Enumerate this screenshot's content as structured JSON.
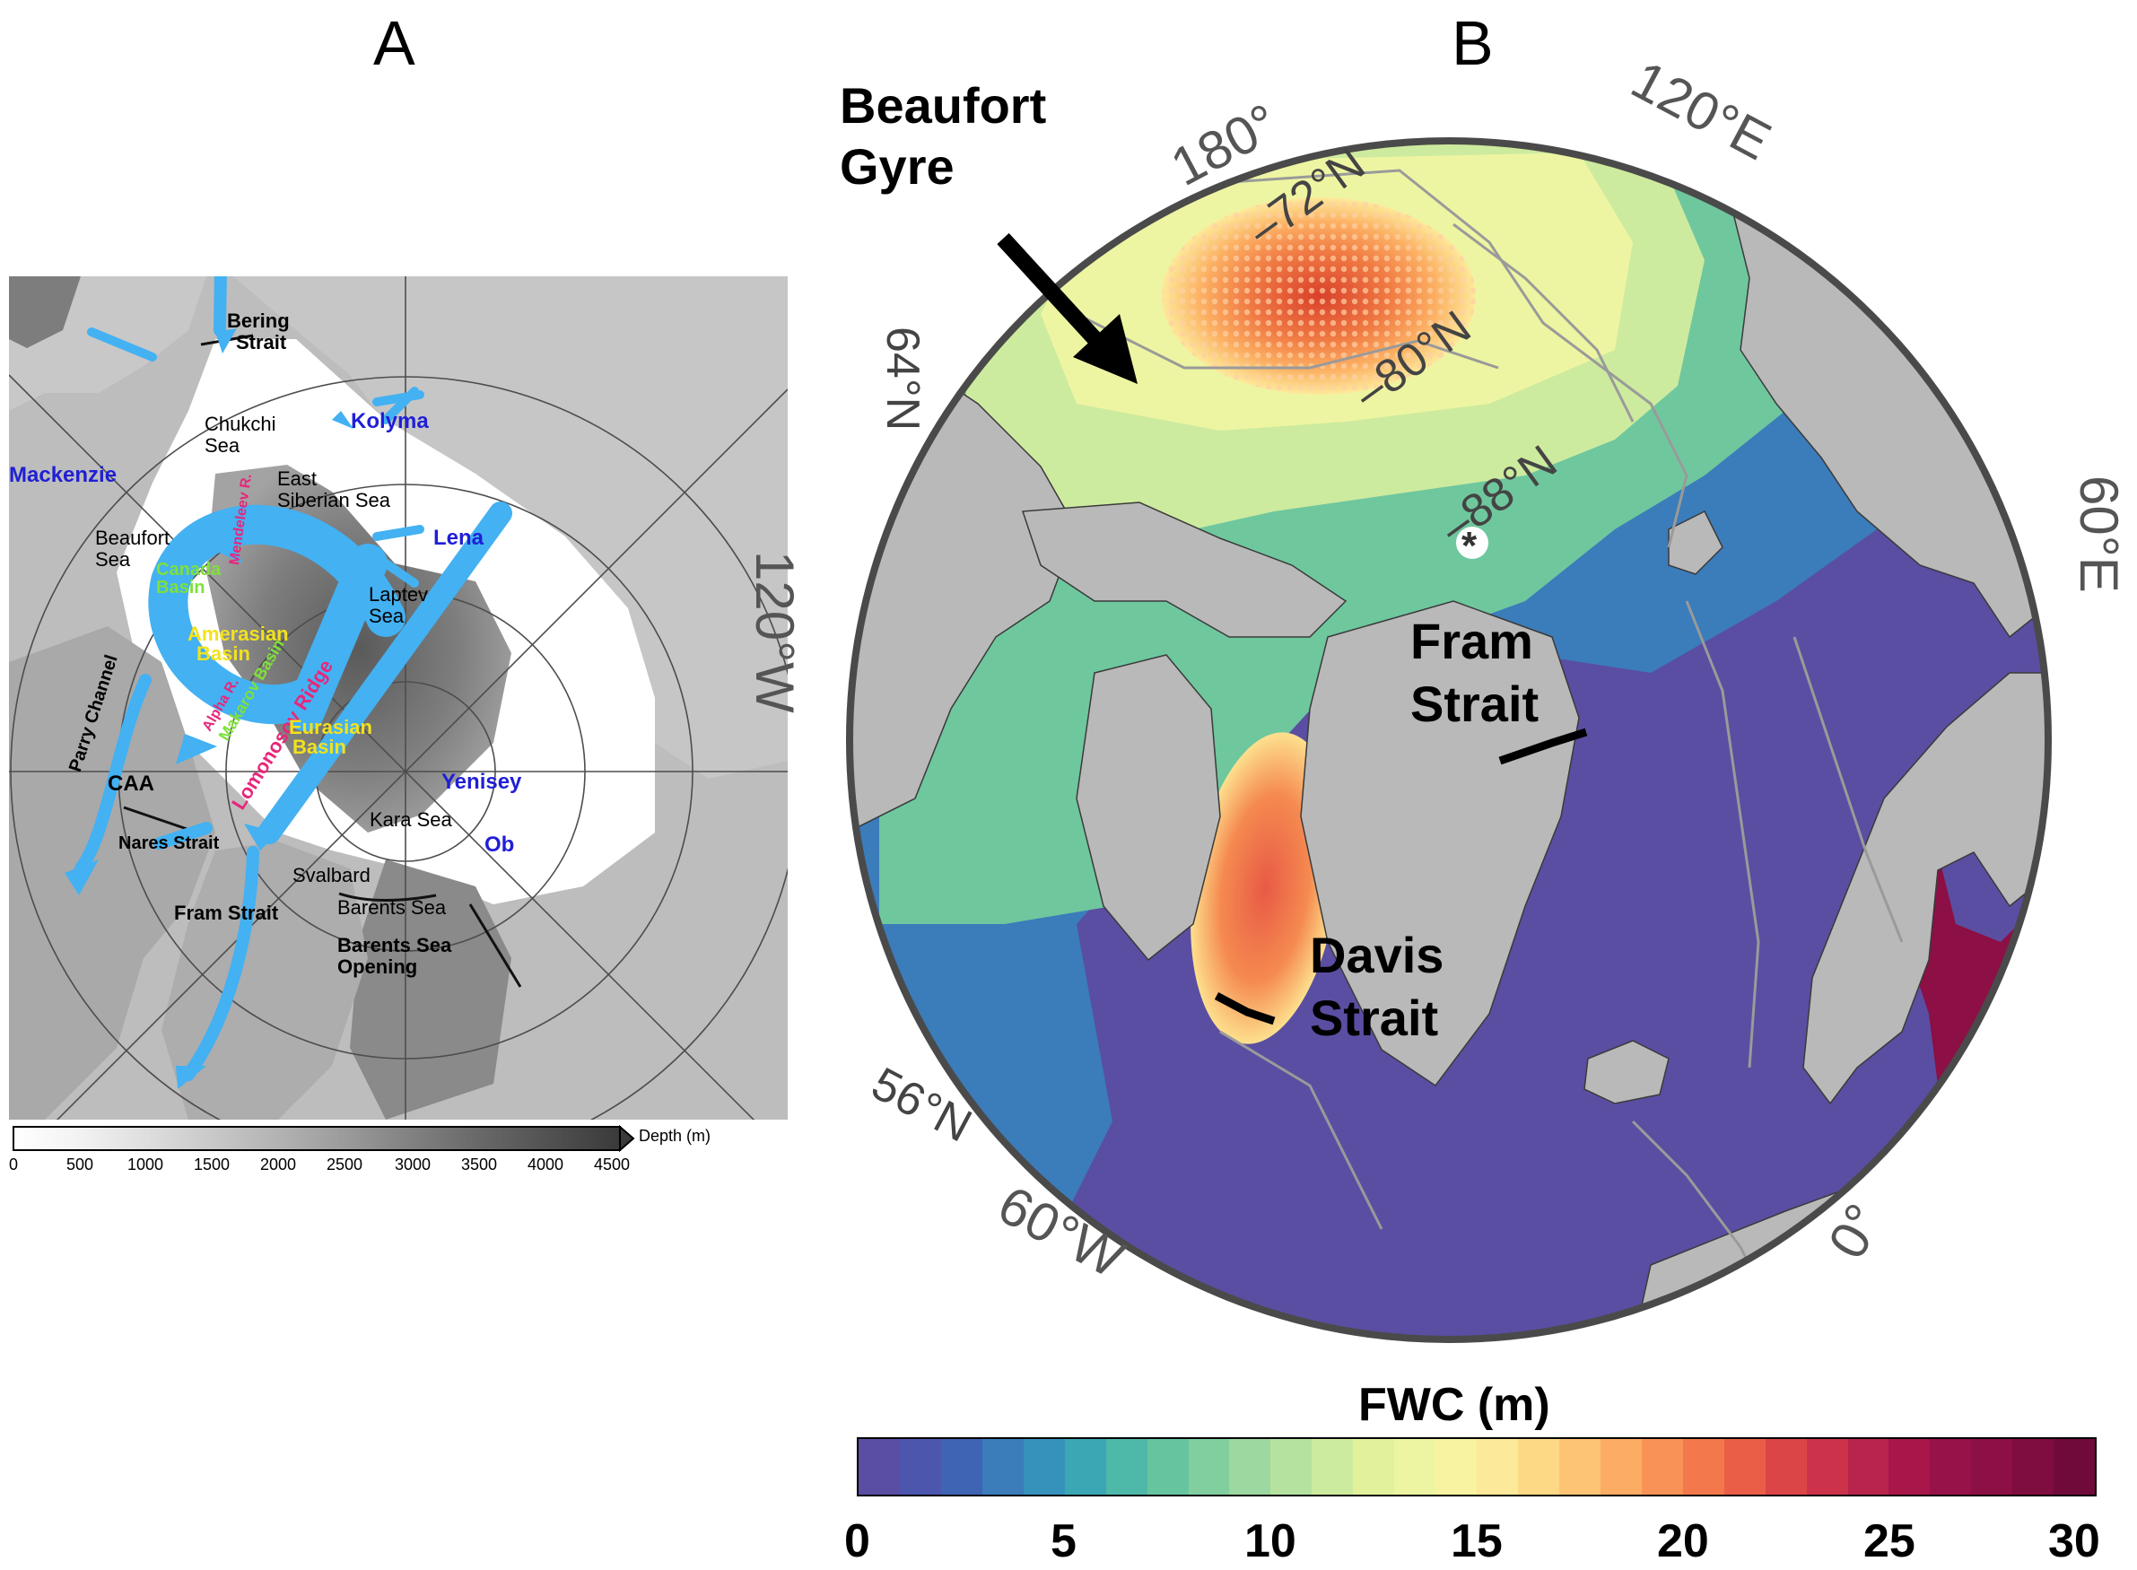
{
  "panel_a": {
    "letter": "A",
    "labels": {
      "bering": [
        "Bering",
        "Strait"
      ],
      "chukchi": [
        "Chukchi",
        "Sea"
      ],
      "kolyma": "Kolyma",
      "mackenzie": "Mackenzie",
      "east_siberian": [
        "East",
        "Siberian Sea"
      ],
      "beaufort_sea": [
        "Beaufort",
        "Sea"
      ],
      "canada_basin": [
        "Canada",
        "Basin"
      ],
      "mendeleev": "Mendeleev R.",
      "lena": "Lena",
      "laptev": [
        "Laptev",
        "Sea"
      ],
      "amerasian": [
        "Amerasian",
        "Basin"
      ],
      "makarov": "Makarov Basin",
      "alpha": "Alpha R.",
      "lomonosov": "Lomonosov Ridge",
      "parry": "Parry Channel",
      "eurasian": [
        "Eurasian",
        "Basin"
      ],
      "caa": "CAA",
      "yenisey": "Yenisey",
      "kara": "Kara Sea",
      "ob": "Ob",
      "nares": "Nares Strait",
      "svalbard": "Svalbard",
      "barents_sea": "Barents Sea",
      "fram": "Fram Strait",
      "bso": [
        "Barents Sea",
        "Opening"
      ]
    },
    "depth_scale": {
      "label": "Depth (m)",
      "ticks": [
        "0",
        "500",
        "1000",
        "1500",
        "2000",
        "2500",
        "3000",
        "3500",
        "4000",
        "4500"
      ]
    }
  },
  "panel_b": {
    "letter": "B",
    "beaufort_gyre": [
      "Beaufort",
      "Gyre"
    ],
    "fram": [
      "Fram",
      "Strait"
    ],
    "davis": [
      "Davis",
      "Strait"
    ],
    "pole_marker": "*",
    "graticule": {
      "lon_180": "180°",
      "lon_120e": "120°E",
      "lon_120w": "120°W",
      "lon_60e": "60°E",
      "lon_60w": "60°W",
      "lon_0": "0°",
      "lat_72": "72°N",
      "lat_80": "80°N",
      "lat_88": "88°N",
      "lat_64": "64°N",
      "lat_56": "56°N"
    },
    "colorbar": {
      "title": "FWC (m)",
      "ticks": [
        "0",
        "5",
        "10",
        "15",
        "20",
        "25",
        "30"
      ],
      "range": [
        0,
        30
      ],
      "colors": [
        "#5a4ea2",
        "#4c56ad",
        "#3f64b4",
        "#3b7cba",
        "#3592bb",
        "#3ca7b4",
        "#4eb8a9",
        "#66c59f",
        "#81cf9f",
        "#9cd89f",
        "#b5e29e",
        "#cdeb9e",
        "#e2f19c",
        "#eef5a2",
        "#f8f3a0",
        "#fde99a",
        "#fdd986",
        "#fdc473",
        "#fcac63",
        "#f99256",
        "#f3784c",
        "#ea5e47",
        "#dc4547",
        "#cc324a",
        "#b9244c",
        "#a8164a",
        "#98124a",
        "#8c0f45",
        "#7f0d40",
        "#700a3a"
      ]
    }
  }
}
